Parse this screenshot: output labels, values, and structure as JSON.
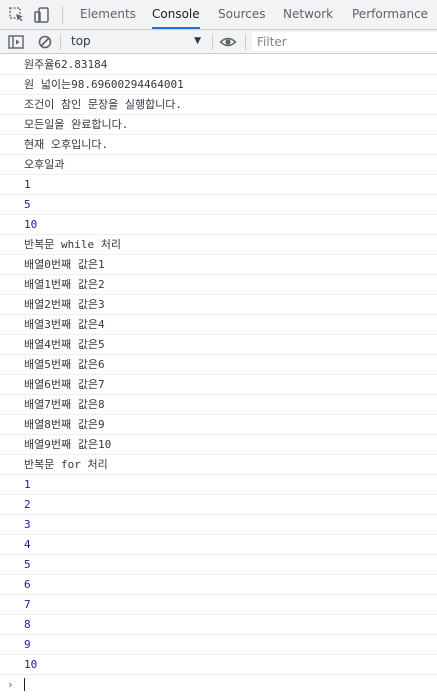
{
  "devtools": {
    "tabs": [
      "Elements",
      "Console",
      "Sources",
      "Network",
      "Performance"
    ],
    "active_tab": "Console"
  },
  "toolbar": {
    "context": "top",
    "filter_placeholder": "Filter"
  },
  "console": {
    "text_messages": [
      "원주율62.83184",
      "원 넓이는98.69600294464001",
      "조건이 참인 문장을 실행합니다.",
      "모든일을 완료합니다.",
      "현재 오후입니다.",
      "오후일과"
    ],
    "numbers_a": [
      "1",
      "5",
      "10"
    ],
    "while_header": "반복문 while 처리",
    "array_messages": [
      "배열0번째 값은1",
      "배열1번째 값은2",
      "배열2번째 값은3",
      "배열3번째 값은4",
      "배열4번째 값은5",
      "배열5번째 값은6",
      "배열6번째 값은7",
      "배열7번째 값은8",
      "배열8번째 값은9",
      "배열9번째 값은10"
    ],
    "for_header": "반복문 for 처리",
    "numbers_b": [
      "1",
      "2",
      "3",
      "4",
      "5",
      "6",
      "7",
      "8",
      "9",
      "10"
    ]
  },
  "colors": {
    "accent": "#1a73e8",
    "number_output": "#1a1aa6",
    "text_output": "#303942"
  },
  "icons": {
    "inspect": "inspect-element-icon",
    "device": "device-toolbar-icon",
    "sidebar": "sidebar-toggle-icon",
    "clear": "clear-console-icon",
    "eye": "live-expression-icon",
    "prompt": "prompt-chevron-icon"
  }
}
